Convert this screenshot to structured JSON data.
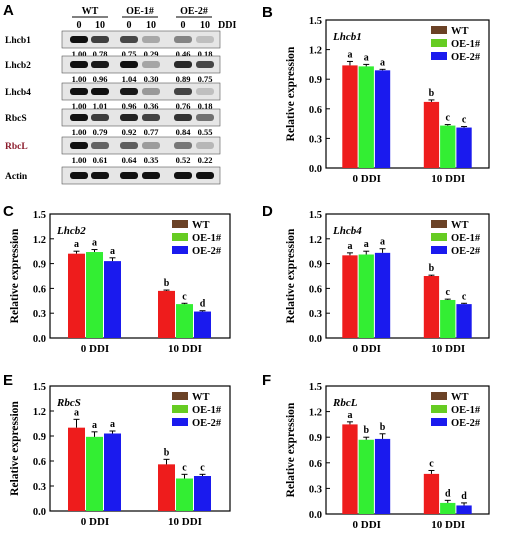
{
  "panel_letters": [
    "A",
    "B",
    "C",
    "D",
    "E",
    "F"
  ],
  "blot": {
    "col_groups": [
      "WT",
      "OE-1#",
      "OE-2#"
    ],
    "col_labels": [
      "0",
      "10",
      "0",
      "10",
      "0",
      "10"
    ],
    "ddi_label": "DDI",
    "rows": [
      {
        "name": "Lhcb1",
        "values": [
          "1.00",
          "0.78",
          "0.75",
          "0.29",
          "0.46",
          "0.18"
        ],
        "color": "#000000"
      },
      {
        "name": "Lhcb2",
        "values": [
          "1.00",
          "0.96",
          "1.04",
          "0.30",
          "0.89",
          "0.75"
        ],
        "color": "#000000"
      },
      {
        "name": "Lhcb4",
        "values": [
          "1.00",
          "1.01",
          "0.96",
          "0.36",
          "0.76",
          "0.18"
        ],
        "color": "#000000"
      },
      {
        "name": "RbcS",
        "values": [
          "1.00",
          "0.79",
          "0.92",
          "0.77",
          "0.84",
          "0.55"
        ],
        "color": "#000000"
      },
      {
        "name": "RbcL",
        "values": [
          "1.00",
          "0.61",
          "0.64",
          "0.35",
          "0.52",
          "0.22"
        ],
        "color": "#8b1a2b"
      },
      {
        "name": "Actin",
        "values": [],
        "color": "#000000"
      }
    ]
  },
  "colors": {
    "WT": "#ee1c1c",
    "OE-1#": "#33ee33",
    "OE-2#": "#1a1aee",
    "legend_WT": "#6b4226",
    "legend_OE1": "#66cc22",
    "legend_OE2": "#1a1aee"
  },
  "chart_data": [
    {
      "type": "bar",
      "panel": "B",
      "gene": "Lhcb1",
      "categories": [
        "0 DDI",
        "10 DDI"
      ],
      "ylabel": "Relative expression",
      "ylim": [
        0,
        1.5
      ],
      "yticks": [
        "0.0",
        "0.3",
        "0.6",
        "0.9",
        "1.2",
        "1.5"
      ],
      "series": [
        {
          "name": "WT",
          "values": [
            1.04,
            0.67
          ],
          "errors": [
            0.04,
            0.02
          ],
          "letters": [
            "a",
            "b"
          ]
        },
        {
          "name": "OE-1#",
          "values": [
            1.03,
            0.43
          ],
          "errors": [
            0.02,
            0.01
          ],
          "letters": [
            "a",
            "c"
          ]
        },
        {
          "name": "OE-2#",
          "values": [
            0.99,
            0.41
          ],
          "errors": [
            0.01,
            0.01
          ],
          "letters": [
            "a",
            "c"
          ]
        }
      ]
    },
    {
      "type": "bar",
      "panel": "C",
      "gene": "Lhcb2",
      "categories": [
        "0 DDI",
        "10 DDI"
      ],
      "ylabel": "Relative expression",
      "ylim": [
        0,
        1.5
      ],
      "yticks": [
        "0.0",
        "0.3",
        "0.6",
        "0.9",
        "1.2",
        "1.5"
      ],
      "series": [
        {
          "name": "WT",
          "values": [
            1.02,
            0.57
          ],
          "errors": [
            0.03,
            0.01
          ],
          "letters": [
            "a",
            "b"
          ]
        },
        {
          "name": "OE-1#",
          "values": [
            1.04,
            0.41
          ],
          "errors": [
            0.03,
            0.01
          ],
          "letters": [
            "a",
            "c"
          ]
        },
        {
          "name": "OE-2#",
          "values": [
            0.93,
            0.32
          ],
          "errors": [
            0.04,
            0.01
          ],
          "letters": [
            "a",
            "d"
          ]
        }
      ]
    },
    {
      "type": "bar",
      "panel": "D",
      "gene": "Lhcb4",
      "categories": [
        "0 DDI",
        "10 DDI"
      ],
      "ylabel": "Relative expression",
      "ylim": [
        0,
        1.5
      ],
      "yticks": [
        "0.0",
        "0.3",
        "0.6",
        "0.9",
        "1.2",
        "1.5"
      ],
      "series": [
        {
          "name": "WT",
          "values": [
            1.0,
            0.75
          ],
          "errors": [
            0.03,
            0.01
          ],
          "letters": [
            "a",
            "b"
          ]
        },
        {
          "name": "OE-1#",
          "values": [
            1.01,
            0.46
          ],
          "errors": [
            0.04,
            0.01
          ],
          "letters": [
            "a",
            "c"
          ]
        },
        {
          "name": "OE-2#",
          "values": [
            1.03,
            0.41
          ],
          "errors": [
            0.05,
            0.01
          ],
          "letters": [
            "a",
            "c"
          ]
        }
      ]
    },
    {
      "type": "bar",
      "panel": "E",
      "gene": "RbcS",
      "categories": [
        "0 DDI",
        "10 DDI"
      ],
      "ylabel": "Relative expression",
      "ylim": [
        0,
        1.5
      ],
      "yticks": [
        "0.0",
        "0.3",
        "0.6",
        "0.9",
        "1.2",
        "1.5"
      ],
      "series": [
        {
          "name": "WT",
          "values": [
            1.0,
            0.56
          ],
          "errors": [
            0.1,
            0.06
          ],
          "letters": [
            "a",
            "b"
          ]
        },
        {
          "name": "OE-1#",
          "values": [
            0.89,
            0.39
          ],
          "errors": [
            0.06,
            0.05
          ],
          "letters": [
            "a",
            "c"
          ]
        },
        {
          "name": "OE-2#",
          "values": [
            0.93,
            0.42
          ],
          "errors": [
            0.03,
            0.02
          ],
          "letters": [
            "a",
            "c"
          ]
        }
      ]
    },
    {
      "type": "bar",
      "panel": "F",
      "gene": "RbcL",
      "categories": [
        "0 DDI",
        "10 DDI"
      ],
      "ylabel": "Relative expression",
      "ylim": [
        0,
        1.5
      ],
      "yticks": [
        "0.0",
        "0.3",
        "0.6",
        "0.9",
        "1.2",
        "1.5"
      ],
      "series": [
        {
          "name": "WT",
          "values": [
            1.05,
            0.47
          ],
          "errors": [
            0.03,
            0.04
          ],
          "letters": [
            "a",
            "c"
          ]
        },
        {
          "name": "OE-1#",
          "values": [
            0.87,
            0.13
          ],
          "errors": [
            0.03,
            0.03
          ],
          "letters": [
            "b",
            "d"
          ]
        },
        {
          "name": "OE-2#",
          "values": [
            0.88,
            0.1
          ],
          "errors": [
            0.06,
            0.03
          ],
          "letters": [
            "b",
            "d"
          ]
        }
      ]
    }
  ]
}
